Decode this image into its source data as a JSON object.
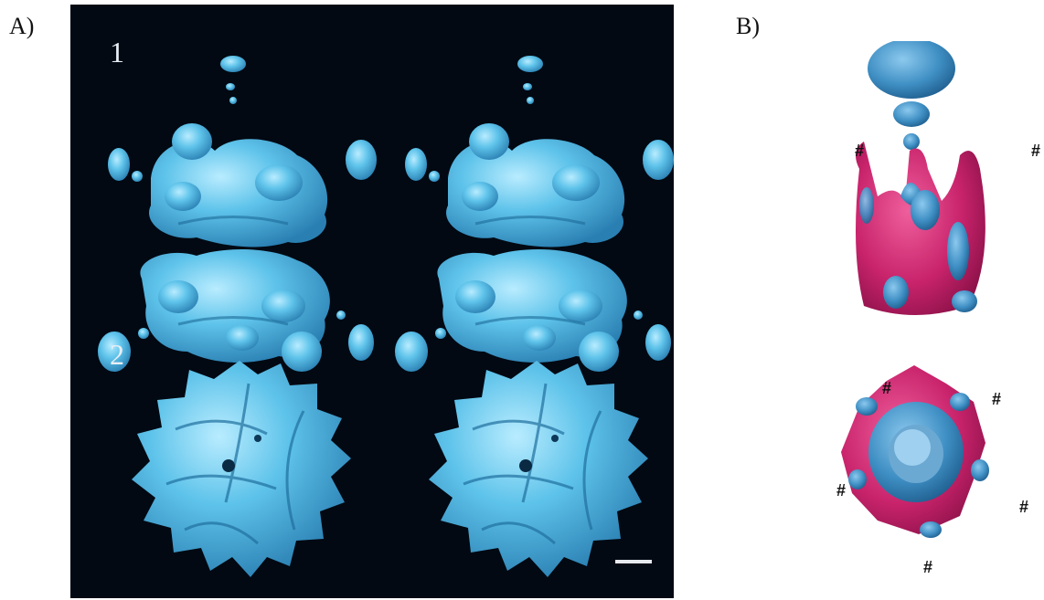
{
  "figure": {
    "panel_a": {
      "letter": "A)",
      "rows": [
        {
          "label": "1"
        },
        {
          "label": "2"
        }
      ],
      "colors": {
        "background": "#020913",
        "density": "#5ec3ea",
        "scale_bar": "#e6e9ee"
      }
    },
    "panel_b": {
      "letter": "B)",
      "marker": "#",
      "colors": {
        "outer_shell": "#c8236b",
        "inner_density": "#3f8fc4"
      }
    }
  }
}
